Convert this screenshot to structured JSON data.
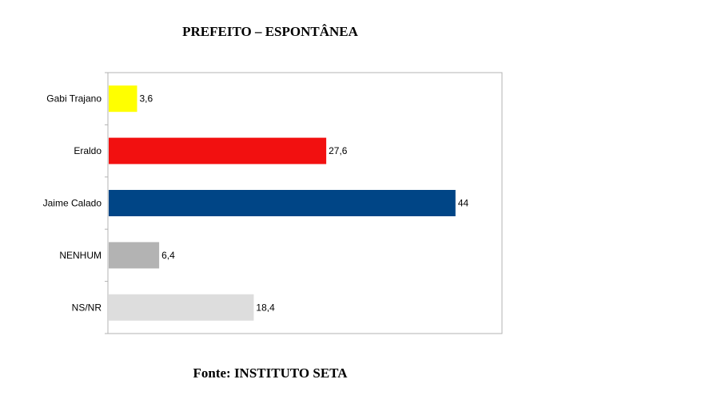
{
  "chart_data": {
    "type": "bar",
    "orientation": "horizontal",
    "title": "PREFEITO – ESPONTÂNEA",
    "source": "Fonte: INSTITUTO SETA",
    "categories": [
      "Gabi Trajano",
      "Eraldo",
      "Jaime Calado",
      "NENHUM",
      "NS/NR"
    ],
    "values": [
      3.6,
      27.6,
      44,
      6.4,
      18.4
    ],
    "value_labels": [
      "3,6",
      "27,6",
      "44",
      "6,4",
      "18,4"
    ],
    "colors": [
      "#ffff00",
      "#f21010",
      "#004586",
      "#b3b3b3",
      "#dddddd"
    ],
    "xlim": [
      0,
      50
    ],
    "grid": false,
    "legend": "none"
  }
}
